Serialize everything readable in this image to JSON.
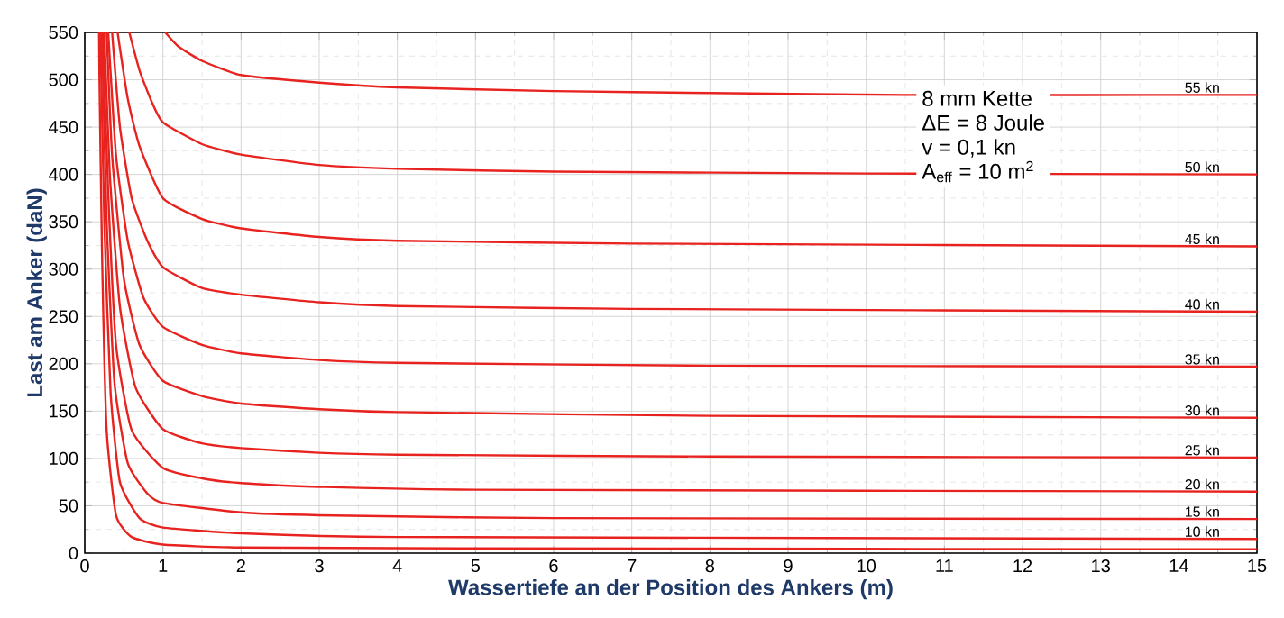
{
  "chart_data": {
    "type": "line",
    "xlabel": "Wassertiefe an der Position des Ankers (m)",
    "ylabel": "Last am Anker (daN)",
    "xlim": [
      0,
      15
    ],
    "ylim": [
      0,
      550
    ],
    "xticks": [
      0,
      1,
      2,
      3,
      4,
      5,
      6,
      7,
      8,
      9,
      10,
      11,
      12,
      13,
      14,
      15
    ],
    "yticks": [
      0,
      50,
      100,
      150,
      200,
      250,
      300,
      350,
      400,
      450,
      500,
      550
    ],
    "grid": true,
    "marker": "none",
    "line_style": "solid",
    "annotations": [
      "8 mm Kette",
      "ΔE = 8 Joule",
      "v = 0,1 kn",
      "A$_{eff}$ = 10 m$^{2}$"
    ],
    "series": [
      {
        "color": "#e8231f",
        "x": [
          0.18,
          0.22,
          0.28,
          0.4,
          0.6,
          1,
          2,
          5,
          15
        ],
        "values": [
          550,
          320,
          130,
          40,
          17,
          9,
          6,
          5,
          4
        ]
      },
      {
        "name": "10 kn",
        "color": "#e8231f",
        "x": [
          0.2,
          0.25,
          0.33,
          0.45,
          0.7,
          1,
          2,
          4,
          15
        ],
        "values": [
          550,
          350,
          170,
          75,
          37,
          27,
          21,
          17,
          15
        ]
      },
      {
        "name": "15 kn",
        "color": "#e8231f",
        "x": [
          0.22,
          0.28,
          0.38,
          0.55,
          0.8,
          1,
          2,
          3,
          6,
          15
        ],
        "values": [
          550,
          350,
          180,
          95,
          63,
          53,
          43,
          40,
          37,
          36
        ]
      },
      {
        "name": "20 kn",
        "color": "#e8231f",
        "x": [
          0.23,
          0.3,
          0.4,
          0.6,
          1,
          1.5,
          2,
          3,
          5,
          15
        ],
        "values": [
          550,
          380,
          220,
          130,
          90,
          79,
          74,
          70,
          67,
          65
        ]
      },
      {
        "name": "25 kn",
        "color": "#e8231f",
        "x": [
          0.25,
          0.32,
          0.45,
          0.65,
          1,
          1.5,
          2,
          3,
          4,
          8,
          15
        ],
        "values": [
          550,
          400,
          260,
          175,
          131,
          116,
          111,
          106,
          104,
          102,
          101
        ]
      },
      {
        "name": "30 kn",
        "color": "#e8231f",
        "x": [
          0.28,
          0.35,
          0.5,
          0.7,
          1,
          1.5,
          2,
          3,
          4,
          8,
          15
        ],
        "values": [
          550,
          420,
          290,
          220,
          182,
          166,
          158,
          152,
          149,
          145,
          143
        ]
      },
      {
        "name": "35 kn",
        "color": "#e8231f",
        "x": [
          0.3,
          0.4,
          0.55,
          0.75,
          1,
          1.5,
          2,
          3,
          4,
          8,
          15
        ],
        "values": [
          550,
          420,
          330,
          270,
          239,
          220,
          211,
          204,
          201,
          198,
          197
        ]
      },
      {
        "name": "40 kn",
        "color": "#e8231f",
        "x": [
          0.35,
          0.45,
          0.6,
          0.8,
          1,
          1.5,
          2,
          3,
          4,
          7,
          15
        ],
        "values": [
          550,
          450,
          375,
          330,
          302,
          280,
          273,
          265,
          261,
          258,
          255
        ]
      },
      {
        "name": "45 kn",
        "color": "#e8231f",
        "x": [
          0.42,
          0.55,
          0.7,
          1,
          1.5,
          2,
          3,
          4,
          7,
          15
        ],
        "values": [
          550,
          480,
          430,
          375,
          353,
          343,
          334,
          330,
          327,
          324
        ]
      },
      {
        "name": "50 kn",
        "color": "#e8231f",
        "x": [
          0.57,
          0.7,
          0.85,
          1,
          1.5,
          2,
          3,
          4,
          6,
          10,
          15
        ],
        "values": [
          550,
          510,
          478,
          455,
          432,
          421,
          410,
          406,
          403,
          401,
          400
        ]
      },
      {
        "name": "55 kn",
        "color": "#e8231f",
        "x": [
          1.03,
          1.2,
          1.5,
          2,
          3,
          4,
          6,
          8,
          10.5,
          15
        ],
        "values": [
          550,
          535,
          520,
          505,
          497,
          492,
          488,
          486,
          484,
          484
        ]
      }
    ]
  }
}
